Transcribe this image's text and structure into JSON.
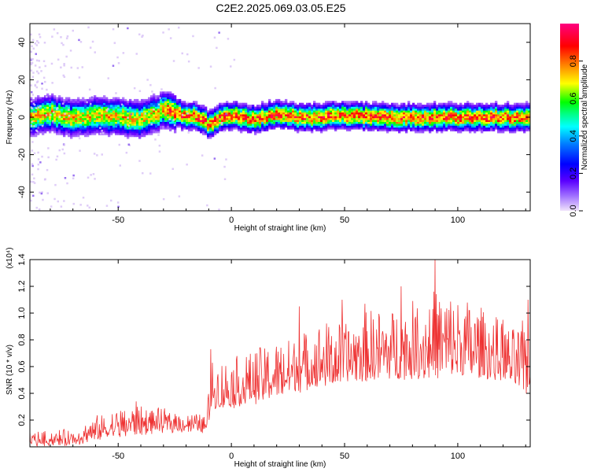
{
  "figure": {
    "title": "C2E2.2025.069.03.05.E25"
  },
  "chart_data": [
    {
      "type": "heatmap",
      "xlabel": "Height of straight line (km)",
      "ylabel": "Frequency (Hz)",
      "xlim": [
        -89,
        132
      ],
      "ylim": [
        -50,
        50
      ],
      "xticks": [
        -50,
        0,
        50,
        100
      ],
      "yticks": [
        -40,
        -20,
        0,
        20,
        40
      ],
      "grid": false,
      "colorbar": {
        "label": "Normalized spectral amplitude",
        "range": [
          0,
          1
        ],
        "ticks": [
          0.0,
          0.2,
          0.4,
          0.6,
          0.8
        ],
        "colormap": [
          "#e8d8f8",
          "#6a00ff",
          "#0000ff",
          "#00ffff",
          "#00ff00",
          "#ffff00",
          "#ff8000",
          "#ff0000",
          "#ff0080"
        ]
      },
      "band": {
        "center_hz": [
          [
            -89,
            0
          ],
          [
            -80,
            2
          ],
          [
            -70,
            -1
          ],
          [
            -60,
            1
          ],
          [
            -50,
            0
          ],
          [
            -40,
            -1
          ],
          [
            -30,
            4
          ],
          [
            -25,
            2
          ],
          [
            -15,
            0
          ],
          [
            -10,
            -4
          ],
          [
            -5,
            0
          ],
          [
            0,
            1
          ],
          [
            10,
            -1
          ],
          [
            20,
            2
          ],
          [
            30,
            0
          ],
          [
            50,
            1
          ],
          [
            70,
            0
          ],
          [
            90,
            0
          ],
          [
            110,
            0
          ],
          [
            132,
            0
          ]
        ],
        "half_width_hz": 6,
        "peak_amplitude": 0.9
      }
    },
    {
      "type": "line",
      "xlabel": "Height of straight line (km)",
      "ylabel": "SNR (10 * v/v)",
      "y_multiplier": "(x10⁴)",
      "xlim": [
        -89,
        132
      ],
      "ylim": [
        0,
        1.4
      ],
      "xticks": [
        -50,
        0,
        50,
        100
      ],
      "yticks": [
        0.2,
        0.4,
        0.6,
        0.8,
        1.0,
        1.2,
        1.4
      ],
      "grid": false,
      "series": [
        {
          "color": "#ee3333",
          "envelope": {
            "x": [
              -89,
              -70,
              -60,
              -50,
              -40,
              -30,
              -20,
              -11,
              -9,
              0,
              10,
              20,
              30,
              40,
              50,
              60,
              70,
              80,
              90,
              100,
              110,
              120,
              125,
              130,
              132
            ],
            "base": [
              0.02,
              0.02,
              0.05,
              0.08,
              0.1,
              0.12,
              0.12,
              0.12,
              0.28,
              0.3,
              0.33,
              0.38,
              0.42,
              0.46,
              0.48,
              0.5,
              0.52,
              0.52,
              0.52,
              0.52,
              0.52,
              0.5,
              0.45,
              0.4,
              0.45
            ],
            "peak": [
              0.12,
              0.14,
              0.25,
              0.32,
              0.34,
              0.3,
              0.28,
              0.25,
              0.7,
              0.72,
              0.8,
              0.85,
              0.92,
              1.02,
              1.0,
              1.12,
              1.12,
              1.18,
              1.3,
              1.25,
              1.15,
              1.0,
              0.95,
              1.05,
              1.1
            ]
          },
          "peaks": [
            [
              -89,
              0.12
            ],
            [
              -42,
              0.34
            ],
            [
              -9,
              0.73
            ],
            [
              30,
              1.05
            ],
            [
              49,
              1.1
            ],
            [
              59,
              1.07
            ],
            [
              75,
              1.2
            ],
            [
              90,
              1.4
            ],
            [
              120,
              0.95
            ],
            [
              131,
              1.1
            ]
          ],
          "samples": 900
        }
      ]
    }
  ]
}
